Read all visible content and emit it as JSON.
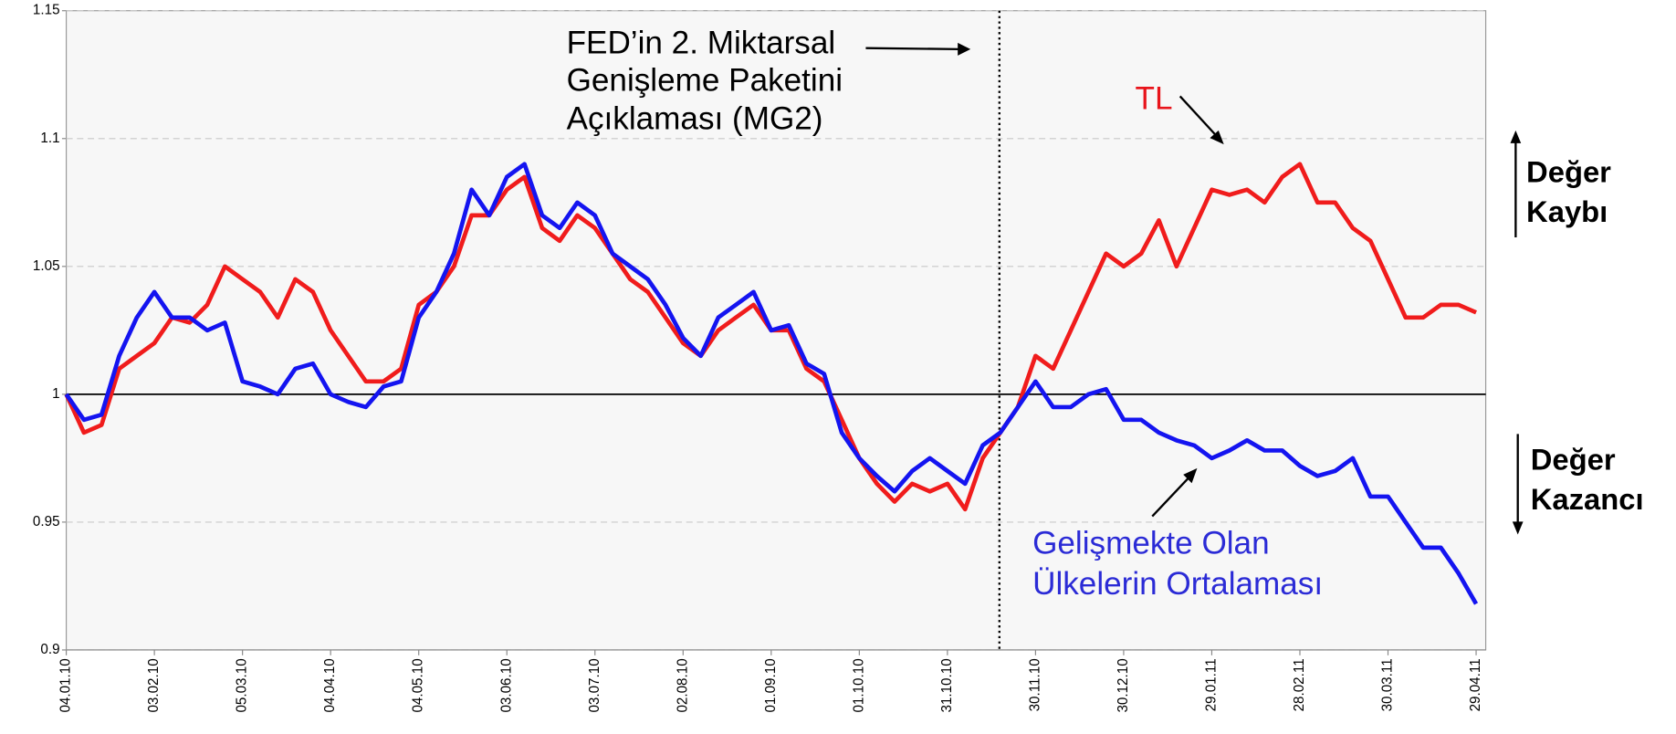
{
  "chart_data": {
    "type": "line",
    "categories": [
      "04.01.10",
      null,
      null,
      null,
      null,
      "03.02.10",
      null,
      null,
      null,
      null,
      "05.03.10",
      null,
      null,
      null,
      null,
      "04.04.10",
      null,
      null,
      null,
      null,
      "04.05.10",
      null,
      null,
      null,
      null,
      "03.06.10",
      null,
      null,
      null,
      null,
      "03.07.10",
      null,
      null,
      null,
      null,
      "02.08.10",
      null,
      null,
      null,
      null,
      "01.09.10",
      null,
      null,
      null,
      null,
      "01.10.10",
      null,
      null,
      null,
      null,
      "31.10.10",
      null,
      null,
      null,
      null,
      "30.11.10",
      null,
      null,
      null,
      null,
      "30.12.10",
      null,
      null,
      null,
      null,
      "29.01.11",
      null,
      null,
      null,
      null,
      "28.02.11",
      null,
      null,
      null,
      null,
      "30.03.11",
      null,
      null,
      null,
      null,
      "29.04.11"
    ],
    "series": [
      {
        "name": "TL",
        "color": "#f01c1c",
        "values": [
          1.0,
          0.985,
          0.988,
          1.01,
          1.015,
          1.02,
          1.03,
          1.028,
          1.035,
          1.05,
          1.045,
          1.04,
          1.03,
          1.045,
          1.04,
          1.025,
          1.015,
          1.005,
          1.005,
          1.01,
          1.035,
          1.04,
          1.05,
          1.07,
          1.07,
          1.08,
          1.085,
          1.065,
          1.06,
          1.07,
          1.065,
          1.055,
          1.045,
          1.04,
          1.03,
          1.02,
          1.015,
          1.025,
          1.03,
          1.035,
          1.025,
          1.025,
          1.01,
          1.005,
          0.99,
          0.975,
          0.965,
          0.958,
          0.965,
          0.962,
          0.965,
          0.955,
          0.975,
          0.985,
          0.995,
          1.015,
          1.01,
          1.025,
          1.04,
          1.055,
          1.05,
          1.055,
          1.068,
          1.05,
          1.065,
          1.08,
          1.078,
          1.08,
          1.075,
          1.085,
          1.09,
          1.075,
          1.075,
          1.065,
          1.06,
          1.045,
          1.03,
          1.03,
          1.035,
          1.035,
          1.032
        ]
      },
      {
        "name": "Gelişmekte Olan Ülkelerin Ortalaması",
        "color": "#1414f0",
        "values": [
          1.0,
          0.99,
          0.992,
          1.015,
          1.03,
          1.04,
          1.03,
          1.03,
          1.025,
          1.028,
          1.005,
          1.003,
          1.0,
          1.01,
          1.012,
          1.0,
          0.997,
          0.995,
          1.003,
          1.005,
          1.03,
          1.04,
          1.055,
          1.08,
          1.07,
          1.085,
          1.09,
          1.07,
          1.065,
          1.075,
          1.07,
          1.055,
          1.05,
          1.045,
          1.035,
          1.022,
          1.015,
          1.03,
          1.035,
          1.04,
          1.025,
          1.027,
          1.012,
          1.008,
          0.985,
          0.975,
          0.968,
          0.962,
          0.97,
          0.975,
          0.97,
          0.965,
          0.98,
          0.985,
          0.995,
          1.005,
          0.995,
          0.995,
          1.0,
          1.002,
          0.99,
          0.99,
          0.985,
          0.982,
          0.98,
          0.975,
          0.978,
          0.982,
          0.978,
          0.978,
          0.972,
          0.968,
          0.97,
          0.975,
          0.96,
          0.96,
          0.95,
          0.94,
          0.94,
          0.93,
          0.918
        ]
      }
    ],
    "ylim": [
      0.9,
      1.15
    ],
    "yticks": [
      0.9,
      0.95,
      1,
      1.05,
      1.1,
      1.15
    ],
    "grid": true,
    "hline": 1,
    "annotations": {
      "fed": [
        "FED’in 2. Miktarsal",
        "Genişleme Paketini",
        "Açıklaması (MG2)"
      ],
      "tl": "TL",
      "em": [
        "Gelişmekte Olan",
        "Ülkelerin Ortalaması"
      ],
      "loss": [
        "Değer",
        "Kaybı"
      ],
      "gain": [
        "Değer",
        "Kazancı"
      ]
    }
  }
}
